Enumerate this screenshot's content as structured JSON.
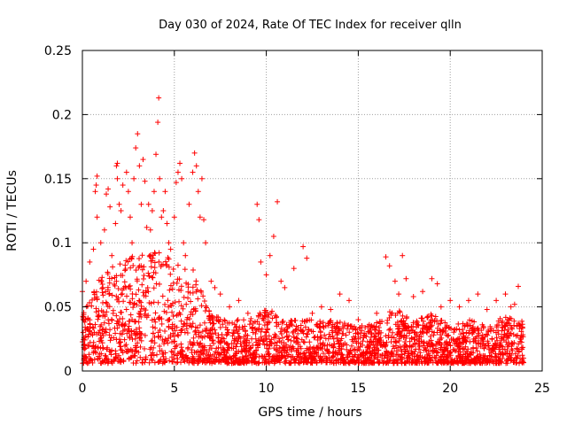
{
  "chart_data": {
    "type": "scatter",
    "title": "Day 030 of 2024, Rate Of TEC Index for receiver qlln",
    "xlabel": "GPS time / hours",
    "ylabel": "ROTI / TECUs",
    "xlim": [
      0,
      25
    ],
    "ylim": [
      0,
      0.25
    ],
    "x_ticks": [
      0,
      5,
      10,
      15,
      20,
      25
    ],
    "x_tick_labels": [
      "0",
      "5",
      "10",
      "15",
      "20",
      "25"
    ],
    "y_ticks": [
      0,
      0.05,
      0.1,
      0.15,
      0.2,
      0.25
    ],
    "y_tick_labels": [
      "0",
      "0.05",
      "0.1",
      "0.15",
      "0.2",
      "0.25"
    ],
    "grid": true,
    "marker": "+",
    "color": "#ff0000",
    "series": [
      {
        "name": "ROTI",
        "points": [
          [
            0.0,
            0.062
          ],
          [
            0.2,
            0.07
          ],
          [
            0.4,
            0.085
          ],
          [
            0.6,
            0.095
          ],
          [
            0.8,
            0.12
          ],
          [
            0.7,
            0.14
          ],
          [
            0.75,
            0.145
          ],
          [
            0.8,
            0.152
          ],
          [
            1.0,
            0.1
          ],
          [
            1.2,
            0.11
          ],
          [
            1.3,
            0.138
          ],
          [
            1.4,
            0.142
          ],
          [
            1.5,
            0.128
          ],
          [
            1.6,
            0.09
          ],
          [
            1.8,
            0.115
          ],
          [
            1.9,
            0.15
          ],
          [
            1.85,
            0.16
          ],
          [
            1.9,
            0.162
          ],
          [
            2.0,
            0.13
          ],
          [
            2.1,
            0.125
          ],
          [
            2.2,
            0.145
          ],
          [
            2.4,
            0.155
          ],
          [
            2.5,
            0.14
          ],
          [
            2.6,
            0.12
          ],
          [
            2.7,
            0.1
          ],
          [
            2.8,
            0.15
          ],
          [
            2.9,
            0.174
          ],
          [
            3.0,
            0.185
          ],
          [
            3.1,
            0.16
          ],
          [
            3.2,
            0.13
          ],
          [
            3.3,
            0.165
          ],
          [
            3.4,
            0.148
          ],
          [
            3.5,
            0.112
          ],
          [
            3.6,
            0.13
          ],
          [
            3.7,
            0.11
          ],
          [
            3.8,
            0.125
          ],
          [
            3.9,
            0.14
          ],
          [
            4.0,
            0.169
          ],
          [
            4.1,
            0.194
          ],
          [
            4.15,
            0.213
          ],
          [
            4.2,
            0.15
          ],
          [
            4.3,
            0.12
          ],
          [
            4.4,
            0.125
          ],
          [
            4.5,
            0.14
          ],
          [
            4.6,
            0.115
          ],
          [
            4.7,
            0.1
          ],
          [
            4.8,
            0.095
          ],
          [
            5.0,
            0.12
          ],
          [
            5.1,
            0.147
          ],
          [
            5.2,
            0.155
          ],
          [
            5.3,
            0.162
          ],
          [
            5.4,
            0.15
          ],
          [
            5.5,
            0.1
          ],
          [
            5.6,
            0.09
          ],
          [
            5.8,
            0.13
          ],
          [
            6.0,
            0.155
          ],
          [
            6.1,
            0.17
          ],
          [
            6.2,
            0.16
          ],
          [
            6.3,
            0.14
          ],
          [
            6.4,
            0.12
          ],
          [
            6.5,
            0.15
          ],
          [
            6.6,
            0.118
          ],
          [
            6.7,
            0.1
          ],
          [
            7.0,
            0.07
          ],
          [
            7.2,
            0.065
          ],
          [
            7.5,
            0.06
          ],
          [
            8.0,
            0.05
          ],
          [
            8.5,
            0.055
          ],
          [
            9.0,
            0.045
          ],
          [
            9.5,
            0.13
          ],
          [
            9.6,
            0.118
          ],
          [
            9.7,
            0.085
          ],
          [
            10.0,
            0.075
          ],
          [
            10.2,
            0.09
          ],
          [
            10.4,
            0.105
          ],
          [
            10.6,
            0.132
          ],
          [
            10.8,
            0.07
          ],
          [
            11.0,
            0.065
          ],
          [
            11.5,
            0.08
          ],
          [
            12.0,
            0.097
          ],
          [
            12.2,
            0.088
          ],
          [
            12.5,
            0.045
          ],
          [
            13.0,
            0.05
          ],
          [
            13.5,
            0.048
          ],
          [
            14.0,
            0.06
          ],
          [
            14.5,
            0.055
          ],
          [
            15.0,
            0.04
          ],
          [
            16.0,
            0.045
          ],
          [
            16.5,
            0.089
          ],
          [
            16.7,
            0.082
          ],
          [
            17.0,
            0.07
          ],
          [
            17.2,
            0.06
          ],
          [
            17.4,
            0.09
          ],
          [
            17.6,
            0.072
          ],
          [
            18.0,
            0.058
          ],
          [
            18.5,
            0.062
          ],
          [
            19.0,
            0.072
          ],
          [
            19.3,
            0.068
          ],
          [
            19.5,
            0.05
          ],
          [
            20.0,
            0.055
          ],
          [
            20.5,
            0.05
          ],
          [
            21.0,
            0.055
          ],
          [
            21.5,
            0.06
          ],
          [
            22.0,
            0.048
          ],
          [
            22.5,
            0.055
          ],
          [
            23.0,
            0.06
          ],
          [
            23.3,
            0.05
          ],
          [
            23.5,
            0.052
          ],
          [
            23.7,
            0.066
          ]
        ],
        "envelope": [
          [
            0,
            0.045
          ],
          [
            1,
            0.075
          ],
          [
            2,
            0.085
          ],
          [
            3,
            0.095
          ],
          [
            4,
            0.095
          ],
          [
            5,
            0.085
          ],
          [
            6,
            0.08
          ],
          [
            7,
            0.045
          ],
          [
            8,
            0.04
          ],
          [
            9,
            0.04
          ],
          [
            10,
            0.05
          ],
          [
            11,
            0.04
          ],
          [
            12,
            0.04
          ],
          [
            13,
            0.04
          ],
          [
            14,
            0.04
          ],
          [
            15,
            0.035
          ],
          [
            16,
            0.04
          ],
          [
            17,
            0.05
          ],
          [
            18,
            0.04
          ],
          [
            19,
            0.045
          ],
          [
            20,
            0.035
          ],
          [
            21,
            0.04
          ],
          [
            22,
            0.035
          ],
          [
            23,
            0.045
          ],
          [
            24,
            0.04
          ]
        ],
        "baseline_min": 0.006,
        "x_range": [
          0,
          24
        ]
      }
    ]
  }
}
